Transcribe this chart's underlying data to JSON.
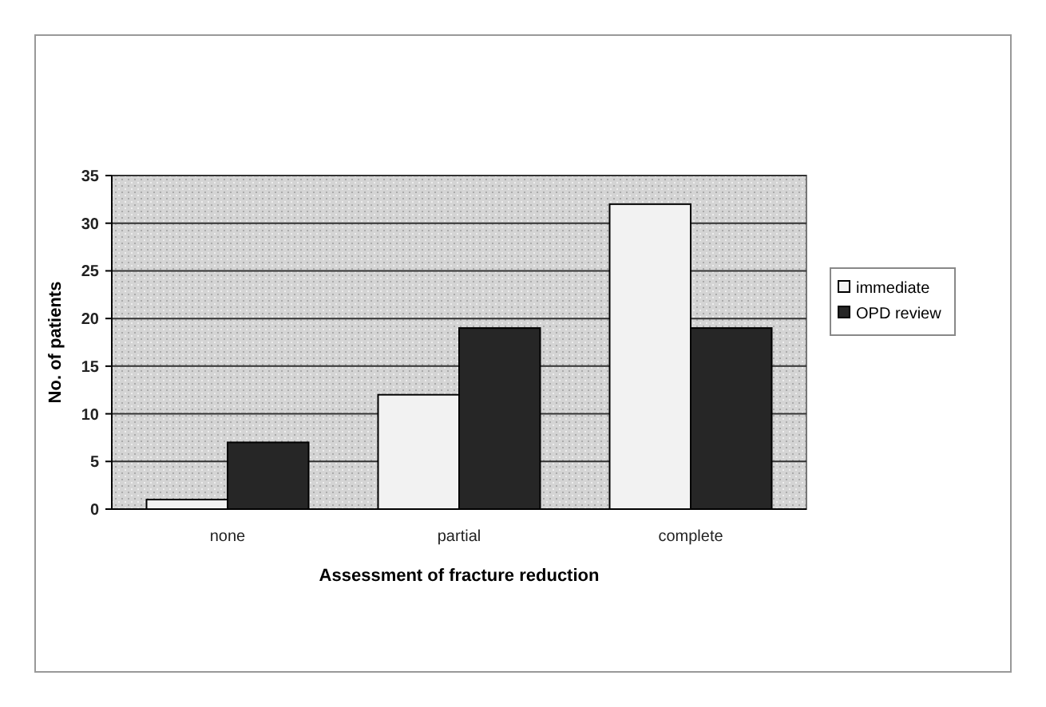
{
  "chart_data": {
    "type": "bar",
    "xlabel": "Assessment of fracture reduction",
    "ylabel": "No. of patients",
    "categories": [
      "none",
      "partial",
      "complete"
    ],
    "series": [
      {
        "name": "immediate",
        "color": "#f2f2f2",
        "values": [
          1,
          12,
          32
        ]
      },
      {
        "name": "OPD review",
        "color": "#262626",
        "values": [
          7,
          19,
          19
        ]
      }
    ],
    "ylim": [
      0,
      35
    ],
    "yticks": [
      0,
      5,
      10,
      15,
      20,
      25,
      30,
      35
    ],
    "grid": "y",
    "legend": "right"
  }
}
